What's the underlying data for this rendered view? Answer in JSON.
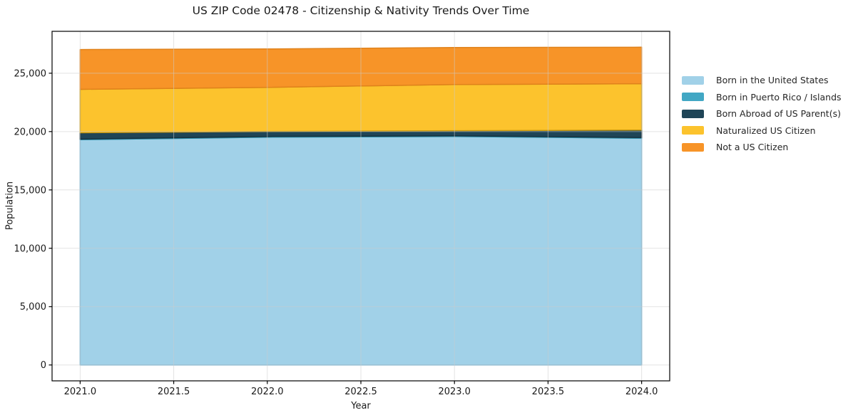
{
  "chart": {
    "title": "US ZIP Code 02478 - Citizenship & Nativity Trends Over Time",
    "xlabel": "Year",
    "ylabel": "Population"
  },
  "chart_data": {
    "type": "area",
    "stacked": true,
    "title": "US ZIP Code 02478 - Citizenship & Nativity Trends Over Time",
    "xlabel": "Year",
    "ylabel": "Population",
    "x": [
      2021,
      2022,
      2023,
      2024
    ],
    "series": [
      {
        "name": "Born in the United States",
        "values": [
          19300,
          19520,
          19580,
          19430
        ],
        "color": "#a1d1e8",
        "edge": "#79b7d6"
      },
      {
        "name": "Born in Puerto Rico / Islands",
        "values": [
          60,
          60,
          60,
          60
        ],
        "color": "#41a7c4",
        "edge": "#2d8ba6"
      },
      {
        "name": "Born Abroad of US Parent(s)",
        "values": [
          540,
          430,
          430,
          640
        ],
        "color": "#1f4557",
        "edge": "#16323f"
      },
      {
        "name": "Naturalized US Citizen",
        "values": [
          3720,
          3780,
          3960,
          3970
        ],
        "color": "#fcc32d",
        "edge": "#c9980d"
      },
      {
        "name": "Not a US Citizen",
        "values": [
          3410,
          3290,
          3170,
          3130
        ],
        "color": "#f79428",
        "edge": "#e0821b"
      }
    ],
    "xlim": [
      2020.85,
      2024.15
    ],
    "ylim": [
      -1360,
      28590
    ],
    "xticks": [
      2021.0,
      2021.5,
      2022.0,
      2022.5,
      2023.0,
      2023.5,
      2024.0
    ],
    "xtick_labels": [
      "2021.0",
      "2021.5",
      "2022.0",
      "2022.5",
      "2023.0",
      "2023.5",
      "2024.0"
    ],
    "yticks": [
      0,
      5000,
      10000,
      15000,
      20000,
      25000
    ],
    "ytick_labels": [
      "0",
      "5,000",
      "10,000",
      "15,000",
      "20,000",
      "25,000"
    ],
    "grid": true,
    "legend_position": "center-right-outside",
    "grid_color": "rgba(204,204,204,0.55)",
    "spine_color": "#000000",
    "text_color": "#1a1a1a"
  }
}
